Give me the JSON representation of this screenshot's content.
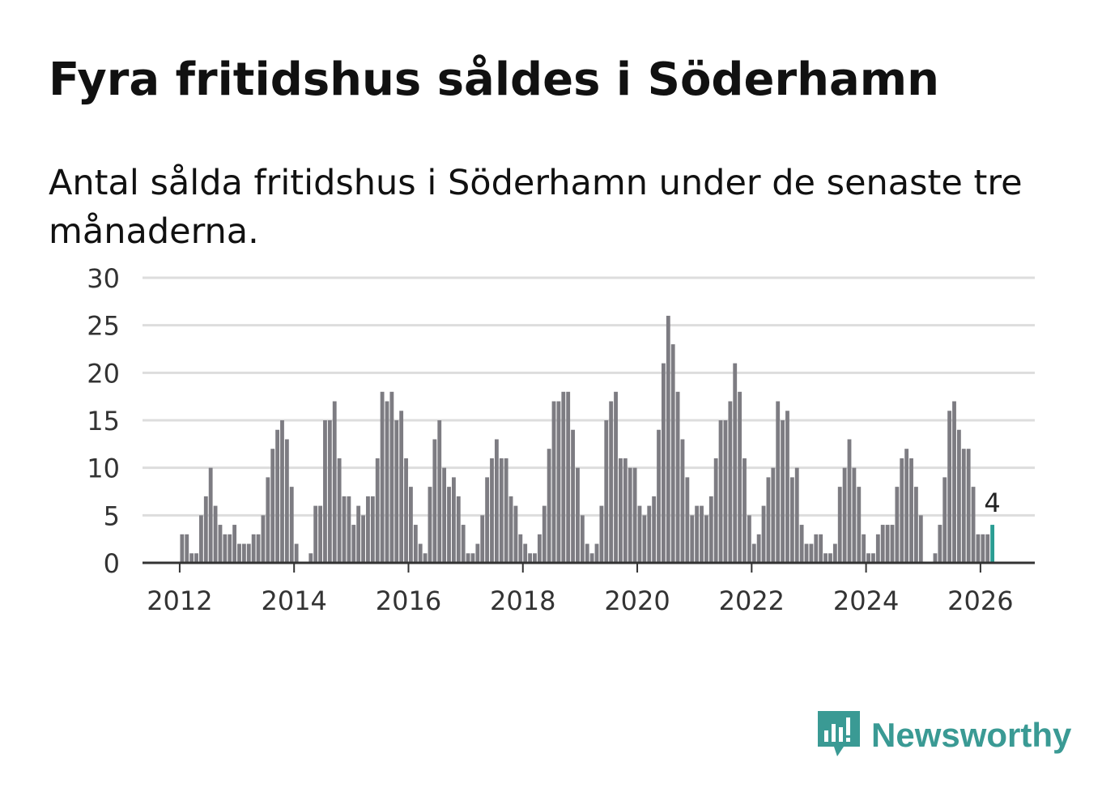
{
  "title": "Fyra fritidshus såldes i Söderhamn",
  "subtitle": "Antal sålda fritidshus i Söderhamn under de senaste tre månaderna.",
  "logo": {
    "text": "Newsworthy",
    "icon": "newsworthy-logo-icon",
    "color": "#3a9a94"
  },
  "colors": {
    "bar": "#7d7c82",
    "highlight": "#2a9d93",
    "grid": "#dddddd",
    "axis": "#333333"
  },
  "chart_data": {
    "type": "bar",
    "x_start_year": 2011,
    "x_start_month": 1,
    "y_ticks": [
      0,
      5,
      10,
      15,
      20,
      25,
      30
    ],
    "x_ticks": [
      "2012",
      "2014",
      "2016",
      "2018",
      "2020",
      "2022",
      "2024",
      "2026"
    ],
    "ylim": [
      0,
      30
    ],
    "xlim_years": [
      2011.35,
      2026.95
    ],
    "values": [
      0,
      0,
      0,
      0,
      0,
      0,
      0,
      0,
      0,
      0,
      0,
      0,
      3,
      3,
      1,
      1,
      5,
      7,
      10,
      6,
      4,
      3,
      3,
      4,
      2,
      2,
      2,
      3,
      3,
      5,
      9,
      12,
      14,
      15,
      13,
      8,
      2,
      0,
      0,
      1,
      6,
      6,
      15,
      15,
      17,
      11,
      7,
      7,
      4,
      6,
      5,
      7,
      7,
      11,
      18,
      17,
      18,
      15,
      16,
      11,
      8,
      4,
      2,
      1,
      8,
      13,
      15,
      10,
      8,
      9,
      7,
      4,
      1,
      1,
      2,
      5,
      9,
      11,
      13,
      11,
      11,
      7,
      6,
      3,
      2,
      1,
      1,
      3,
      6,
      12,
      17,
      17,
      18,
      18,
      14,
      10,
      5,
      2,
      1,
      2,
      6,
      15,
      17,
      18,
      11,
      11,
      10,
      10,
      6,
      5,
      6,
      7,
      14,
      21,
      26,
      23,
      18,
      13,
      9,
      5,
      6,
      6,
      5,
      7,
      11,
      15,
      15,
      17,
      21,
      18,
      11,
      5,
      2,
      3,
      6,
      9,
      10,
      17,
      15,
      16,
      9,
      10,
      4,
      2,
      2,
      3,
      3,
      1,
      1,
      2,
      8,
      10,
      13,
      10,
      8,
      3,
      1,
      1,
      3,
      4,
      4,
      4,
      8,
      11,
      12,
      11,
      8,
      5,
      0,
      0,
      1,
      4,
      9,
      16,
      17,
      14,
      12,
      12,
      8,
      3,
      3,
      3,
      4
    ],
    "highlight_label": "4",
    "title": "Fyra fritidshus såldes i Söderhamn",
    "xlabel": "",
    "ylabel": ""
  }
}
